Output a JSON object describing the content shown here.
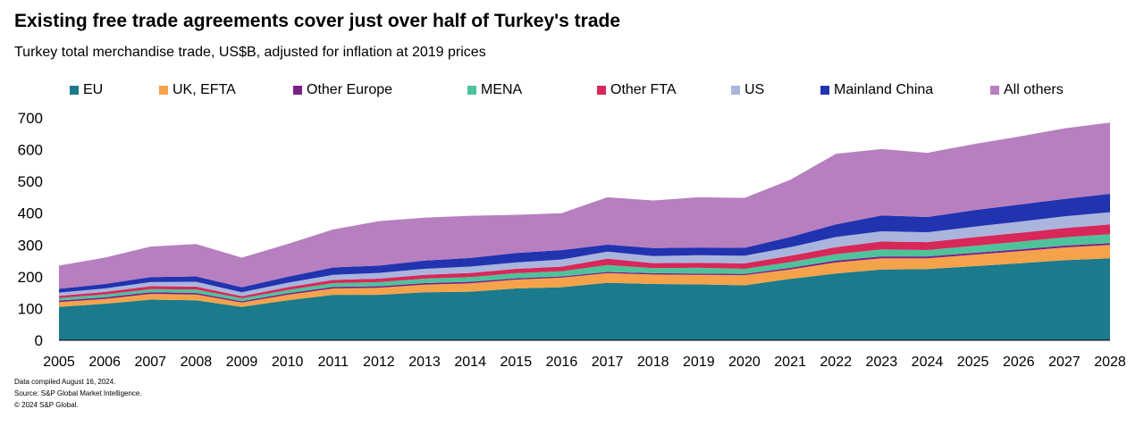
{
  "title": "Existing free trade agreements cover just over half of Turkey's trade",
  "subtitle": "Turkey total merchandise trade, US$B, adjusted for inflation at 2019 prices",
  "footnotes": {
    "compiled": "Data compiled August 16, 2024.",
    "source": "Source: S&P Global Market Intelligence.",
    "copyright": "© 2024 S&P Global."
  },
  "chart_data": {
    "type": "area",
    "stacked": true,
    "title": "Existing free trade agreements cover just over half of Turkey's trade",
    "subtitle": "Turkey total merchandise trade, US$B, adjusted for inflation at 2019 prices",
    "xlabel": "",
    "ylabel": "",
    "ylim": [
      0,
      700
    ],
    "yticks": [
      0,
      100,
      200,
      300,
      400,
      500,
      600,
      700
    ],
    "grid": false,
    "legend_position": "top",
    "x": [
      "2005",
      "2006",
      "2007",
      "2008",
      "2009",
      "2010",
      "2011",
      "2012",
      "2013",
      "2014",
      "2015",
      "2016",
      "2017",
      "2018",
      "2019",
      "2020",
      "2021",
      "2022",
      "2023",
      "2024",
      "2025",
      "2026",
      "2027",
      "2028"
    ],
    "series": [
      {
        "name": "EU",
        "color": "#1b7a8c",
        "values": [
          105,
          115,
          128,
          126,
          105,
          126,
          143,
          143,
          151,
          153,
          163,
          167,
          181,
          177,
          176,
          173,
          193,
          210,
          223,
          224,
          233,
          242,
          252,
          258
        ]
      },
      {
        "name": "UK, EFTA",
        "color": "#f5a34a",
        "values": [
          15,
          15,
          18,
          18,
          14,
          17,
          20,
          22,
          24,
          26,
          28,
          30,
          30,
          30,
          30,
          32,
          30,
          35,
          35,
          34,
          36,
          38,
          40,
          42
        ]
      },
      {
        "name": "Other Europe",
        "color": "#7d1f8a",
        "values": [
          5,
          5,
          5,
          5,
          4,
          5,
          5,
          5,
          5,
          5,
          4,
          4,
          4,
          4,
          4,
          4,
          5,
          6,
          6,
          6,
          6,
          6,
          6,
          6
        ]
      },
      {
        "name": "MENA",
        "color": "#4ec39a",
        "values": [
          8,
          9,
          10,
          11,
          9,
          10,
          12,
          13,
          14,
          15,
          16,
          16,
          22,
          16,
          18,
          16,
          18,
          20,
          22,
          20,
          22,
          24,
          26,
          28
        ]
      },
      {
        "name": "Other FTA",
        "color": "#d72859",
        "values": [
          7,
          8,
          9,
          9,
          7,
          9,
          10,
          11,
          12,
          13,
          14,
          15,
          20,
          16,
          16,
          17,
          20,
          22,
          25,
          25,
          27,
          28,
          29,
          31
        ]
      },
      {
        "name": "US",
        "color": "#aab5dd",
        "values": [
          10,
          11,
          13,
          15,
          12,
          14,
          16,
          18,
          19,
          20,
          20,
          22,
          22,
          22,
          24,
          24,
          27,
          32,
          32,
          31,
          33,
          35,
          37,
          38
        ]
      },
      {
        "name": "Mainland China",
        "color": "#2233b0",
        "values": [
          12,
          14,
          16,
          17,
          16,
          19,
          23,
          23,
          26,
          27,
          30,
          30,
          22,
          25,
          24,
          25,
          32,
          40,
          50,
          48,
          52,
          54,
          55,
          58
        ]
      },
      {
        "name": "All others",
        "color": "#b77fc0",
        "values": [
          73,
          83,
          96,
          102,
          93,
          103,
          120,
          140,
          135,
          133,
          120,
          116,
          149,
          150,
          158,
          157,
          180,
          222,
          209,
          202,
          208,
          214,
          222,
          224
        ]
      }
    ]
  }
}
